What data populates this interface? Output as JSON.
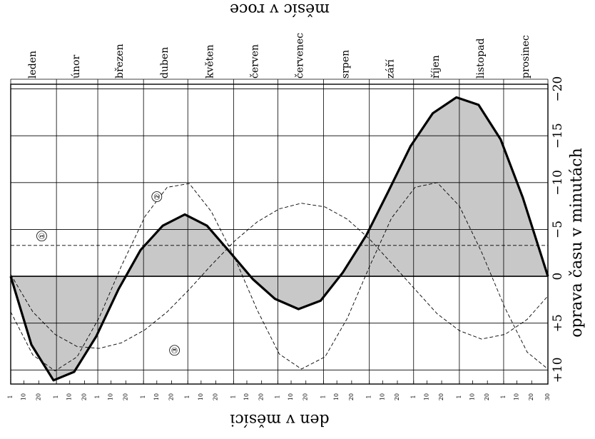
{
  "chart_data": {
    "type": "line",
    "orientation": "rotated-90",
    "title": "",
    "xlabel": "den v měsíci",
    "xlabel_top": "měsíc v roce",
    "ylabel": "oprava času v minutách",
    "months": [
      "leden",
      "únor",
      "březen",
      "duben",
      "květen",
      "červen",
      "červenec",
      "srpen",
      "září",
      "říjen",
      "listopad",
      "prosinec"
    ],
    "month_days": [
      31,
      28,
      31,
      30,
      31,
      30,
      31,
      31,
      30,
      31,
      30,
      31
    ],
    "day_ticks_labels": [
      "1",
      "10",
      "20"
    ],
    "last_day_label": "30",
    "day_ticks": [
      1,
      10,
      20
    ],
    "y_ticks": [
      10,
      5,
      0,
      -5,
      -10,
      -15,
      -20
    ],
    "y_tick_labels": [
      "+10",
      "+5",
      "0",
      "−5",
      "−10",
      "−15",
      "−20"
    ],
    "ylim": [
      11.5,
      -20.5
    ],
    "grid": true,
    "series": [
      {
        "name": "",
        "style": "bold-filled",
        "day_of_year": [
          1,
          15,
          30,
          44,
          59,
          74,
          89,
          104,
          119,
          134,
          150,
          165,
          180,
          196,
          211,
          226,
          242,
          257,
          272,
          287,
          303,
          318,
          333,
          348,
          365
        ],
        "values": [
          0,
          7.3,
          11.1,
          10.2,
          6.4,
          1.4,
          -2.8,
          -5.4,
          -6.6,
          -5.4,
          -2.5,
          0.3,
          2.4,
          3.5,
          2.6,
          -0.4,
          -4.4,
          -9.1,
          -13.9,
          -17.4,
          -19.1,
          -18.3,
          -14.6,
          -8.4,
          0
        ]
      },
      {
        "name": "①",
        "style": "dashed",
        "day_of_year": [
          1,
          365
        ],
        "values": [
          -3.3,
          -3.3
        ]
      },
      {
        "name": "②",
        "style": "dashed",
        "day_of_year": [
          1,
          16,
          31,
          46,
          61,
          76,
          92,
          107,
          122,
          137,
          153,
          168,
          183,
          198,
          214,
          229,
          244,
          259,
          275,
          290,
          305,
          320,
          336,
          351,
          365
        ],
        "values": [
          3.8,
          8.4,
          10.1,
          8.6,
          4.4,
          -1.1,
          -6.4,
          -9.5,
          -9.9,
          -6.9,
          -1.9,
          3.6,
          8.3,
          9.9,
          8.6,
          4.5,
          -1,
          -6.2,
          -9.5,
          -10,
          -7.5,
          -2.6,
          3.4,
          8.1,
          9.9
        ]
      },
      {
        "name": "③",
        "style": "dashed",
        "day_of_year": [
          1,
          16,
          31,
          46,
          61,
          76,
          92,
          107,
          122,
          137,
          153,
          168,
          183,
          198,
          214,
          229,
          244,
          259,
          275,
          290,
          305,
          320,
          336,
          351,
          365
        ],
        "values": [
          -0.2,
          3.8,
          6.2,
          7.5,
          7.7,
          7.1,
          5.7,
          3.8,
          1.4,
          -1.2,
          -3.8,
          -5.8,
          -7.2,
          -7.8,
          -7.4,
          -6.1,
          -4,
          -1.4,
          1.4,
          4,
          5.8,
          6.7,
          6.2,
          4.6,
          2.1
        ]
      }
    ]
  },
  "labels": {
    "top_axis": "měsíc v roce",
    "bottom_axis": "den v měsíci",
    "right_axis": "oprava času v minutách"
  }
}
